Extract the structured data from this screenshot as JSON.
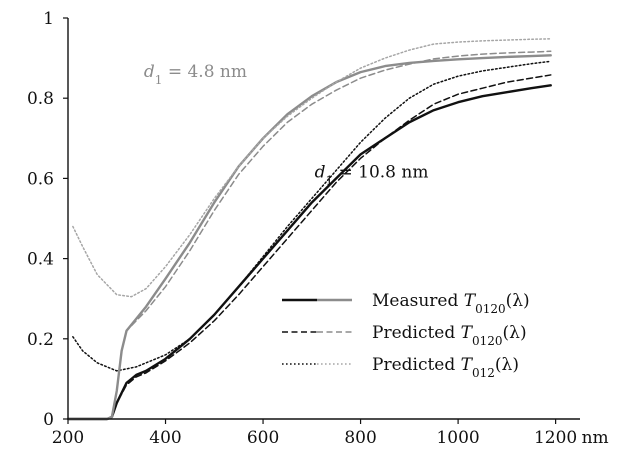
{
  "chart_data": {
    "type": "line",
    "title": "",
    "xlabel": "",
    "ylabel": "",
    "x_unit": "nm",
    "xlim": [
      200,
      1250
    ],
    "ylim": [
      0,
      1
    ],
    "x_ticks": [
      200,
      400,
      600,
      800,
      1000,
      1200
    ],
    "x_tick_labels": [
      "200",
      "400",
      "600",
      "800",
      "1000",
      "1200"
    ],
    "y_ticks": [
      0,
      0.2,
      0.4,
      0.6,
      0.8,
      1
    ],
    "y_tick_labels": [
      "0",
      "0.2",
      "0.4",
      "0.6",
      "0.8",
      "1"
    ],
    "grid": false,
    "legend_position": "bottom-right",
    "legend": [
      {
        "sub": "0120",
        "text_before": "Measured ",
        "italic": "T",
        "text_after": "(λ)",
        "dash": "solid"
      },
      {
        "sub": "0120",
        "text_before": "Predicted ",
        "italic": "T",
        "text_after": "(λ)",
        "dash": "dashed"
      },
      {
        "sub": "012",
        "text_before": "Predicted ",
        "italic": "T",
        "text_after": "(λ)",
        "dash": "dotted"
      }
    ],
    "annotations": [
      {
        "italic": "d",
        "sub": "1",
        "text": " = 4.8 nm",
        "x": 450,
        "y": 0.86,
        "color": "#8c8c8c"
      },
      {
        "italic": "d",
        "sub": "1",
        "text": " = 10.8 nm",
        "x": 800,
        "y": 0.61,
        "color": "#111111"
      }
    ],
    "series": [
      {
        "group": "d1 = 10.8 nm",
        "kind": "measured",
        "color": "#111111",
        "dash": "solid",
        "width": 2.4,
        "x": [
          200,
          280,
          290,
          300,
          320,
          340,
          360,
          400,
          450,
          500,
          550,
          600,
          650,
          700,
          750,
          800,
          850,
          900,
          950,
          1000,
          1050,
          1100,
          1150,
          1190
        ],
        "y": [
          0,
          0,
          0.005,
          0.04,
          0.09,
          0.11,
          0.12,
          0.15,
          0.2,
          0.26,
          0.33,
          0.4,
          0.47,
          0.54,
          0.6,
          0.66,
          0.7,
          0.74,
          0.77,
          0.79,
          0.805,
          0.815,
          0.825,
          0.832
        ]
      },
      {
        "group": "d1 = 10.8 nm",
        "kind": "predicted T0120",
        "color": "#111111",
        "dash": "dashed",
        "width": 1.5,
        "x": [
          290,
          300,
          320,
          340,
          360,
          400,
          450,
          500,
          550,
          600,
          650,
          700,
          750,
          800,
          850,
          900,
          950,
          1000,
          1050,
          1100,
          1150,
          1190
        ],
        "y": [
          0.005,
          0.04,
          0.085,
          0.105,
          0.115,
          0.145,
          0.19,
          0.245,
          0.31,
          0.38,
          0.45,
          0.52,
          0.59,
          0.65,
          0.7,
          0.745,
          0.785,
          0.81,
          0.825,
          0.84,
          0.85,
          0.858
        ]
      },
      {
        "group": "d1 = 10.8 nm",
        "kind": "predicted T012",
        "color": "#111111",
        "dash": "dotted",
        "width": 1.5,
        "x": [
          210,
          230,
          260,
          300,
          340,
          400,
          450,
          500,
          550,
          600,
          650,
          700,
          750,
          800,
          850,
          900,
          950,
          1000,
          1050,
          1100,
          1150,
          1190
        ],
        "y": [
          0.205,
          0.17,
          0.14,
          0.12,
          0.13,
          0.16,
          0.2,
          0.26,
          0.33,
          0.405,
          0.48,
          0.55,
          0.62,
          0.69,
          0.75,
          0.8,
          0.835,
          0.855,
          0.868,
          0.877,
          0.886,
          0.892
        ]
      },
      {
        "group": "d1 = 4.8 nm",
        "kind": "measured",
        "color": "#8c8c8c",
        "dash": "solid",
        "width": 2.4,
        "x": [
          200,
          280,
          290,
          300,
          310,
          320,
          340,
          360,
          400,
          450,
          500,
          550,
          600,
          650,
          700,
          750,
          800,
          850,
          900,
          950,
          1000,
          1050,
          1100,
          1150,
          1190
        ],
        "y": [
          0,
          0,
          0.005,
          0.07,
          0.17,
          0.22,
          0.25,
          0.28,
          0.35,
          0.44,
          0.54,
          0.63,
          0.7,
          0.76,
          0.805,
          0.84,
          0.865,
          0.88,
          0.888,
          0.893,
          0.897,
          0.9,
          0.903,
          0.905,
          0.907
        ]
      },
      {
        "group": "d1 = 4.8 nm",
        "kind": "predicted T0120",
        "color": "#8c8c8c",
        "dash": "dashed",
        "width": 1.5,
        "x": [
          290,
          300,
          310,
          320,
          340,
          360,
          400,
          450,
          500,
          550,
          600,
          650,
          700,
          750,
          800,
          850,
          900,
          950,
          1000,
          1050,
          1100,
          1150,
          1190
        ],
        "y": [
          0.005,
          0.07,
          0.17,
          0.22,
          0.245,
          0.27,
          0.33,
          0.42,
          0.52,
          0.61,
          0.68,
          0.74,
          0.785,
          0.82,
          0.85,
          0.87,
          0.885,
          0.898,
          0.905,
          0.91,
          0.913,
          0.915,
          0.917
        ]
      },
      {
        "group": "d1 = 4.8 nm",
        "kind": "predicted T012",
        "color": "#a6a6a6",
        "dash": "dotted",
        "width": 1.5,
        "x": [
          210,
          230,
          260,
          300,
          330,
          360,
          400,
          450,
          500,
          550,
          600,
          650,
          700,
          750,
          800,
          850,
          900,
          950,
          1000,
          1050,
          1100,
          1150,
          1190
        ],
        "y": [
          0.48,
          0.43,
          0.36,
          0.31,
          0.305,
          0.325,
          0.38,
          0.46,
          0.55,
          0.63,
          0.7,
          0.755,
          0.8,
          0.84,
          0.875,
          0.9,
          0.92,
          0.935,
          0.94,
          0.943,
          0.945,
          0.947,
          0.948
        ]
      }
    ]
  }
}
